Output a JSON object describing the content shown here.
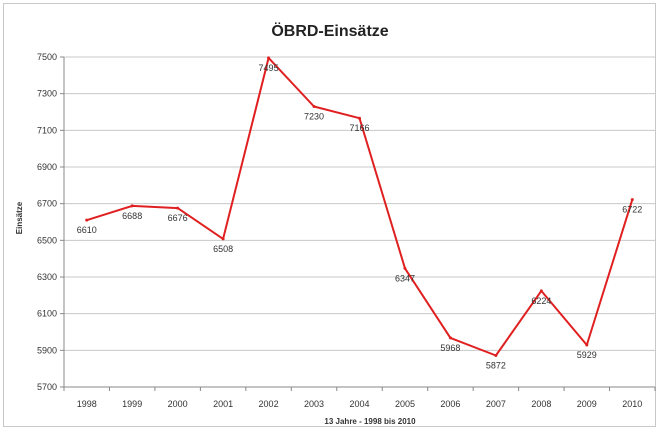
{
  "chart_data": {
    "type": "line",
    "title": "ÖBRD-Einsätze",
    "xlabel": "13 Jahre - 1998 bis 2010",
    "ylabel": "Einsätze",
    "ylim": [
      5700,
      7500
    ],
    "yticks": [
      5700,
      5900,
      6100,
      6300,
      6500,
      6700,
      6900,
      7100,
      7300,
      7500
    ],
    "grid": true,
    "legend": "none",
    "categories": [
      "1998",
      "1999",
      "2000",
      "2001",
      "2002",
      "2003",
      "2004",
      "2005",
      "2006",
      "2007",
      "2008",
      "2009",
      "2010"
    ],
    "series": [
      {
        "values": [
          6610,
          6688,
          6676,
          6508,
          7495,
          7230,
          7166,
          6347,
          5968,
          5872,
          6224,
          5929,
          6722
        ],
        "color": "#e02020"
      }
    ]
  }
}
